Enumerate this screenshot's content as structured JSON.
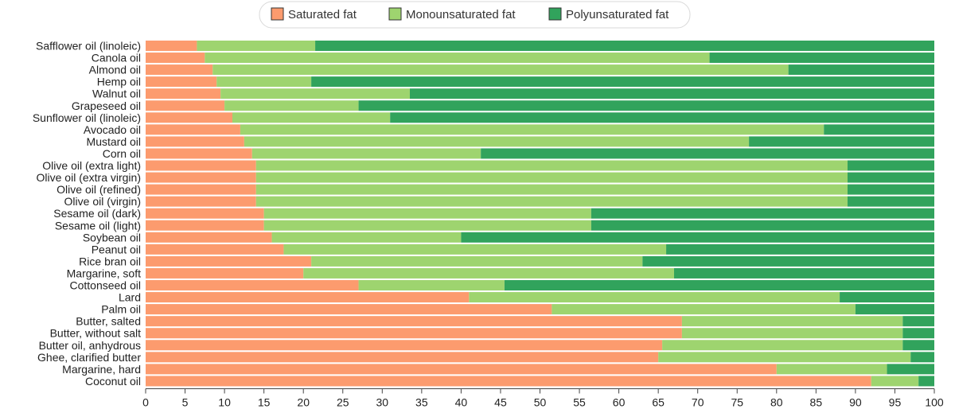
{
  "chart_data": {
    "type": "bar",
    "orientation": "horizontal",
    "stacked": true,
    "xlim": [
      0,
      100
    ],
    "x_ticks": [
      "0",
      "5",
      "10",
      "15",
      "20",
      "25",
      "30",
      "35",
      "40",
      "45",
      "50",
      "55",
      "60",
      "65",
      "70",
      "75",
      "80",
      "85",
      "90",
      "95",
      "100"
    ],
    "legend_placement": "top-center",
    "categories": [
      "Safflower oil (linoleic)",
      "Canola oil",
      "Almond oil",
      "Hemp oil",
      "Walnut oil",
      "Grapeseed oil",
      "Sunflower oil (linoleic)",
      "Avocado oil",
      "Mustard oil",
      "Corn oil",
      "Olive oil (extra light)",
      "Olive oil (extra virgin)",
      "Olive oil (refined)",
      "Olive oil (virgin)",
      "Sesame oil (dark)",
      "Sesame oil (light)",
      "Soybean oil",
      "Peanut oil",
      "Rice bran oil",
      "Margarine, soft",
      "Cottonseed oil",
      "Lard",
      "Palm oil",
      "Butter, salted",
      "Butter, without salt",
      "Butter oil, anhydrous",
      "Ghee, clarified butter",
      "Margarine, hard",
      "Coconut oil"
    ],
    "series": [
      {
        "name": "Saturated fat",
        "color": "#fc9b6e",
        "values": [
          6.5,
          7.5,
          8.5,
          9,
          9.5,
          10,
          11,
          12,
          12.5,
          13.5,
          14,
          14,
          14,
          14,
          15,
          15,
          16,
          17.5,
          21,
          20,
          27,
          41,
          51.5,
          68,
          68,
          65.5,
          65,
          80,
          92
        ]
      },
      {
        "name": "Monounsaturated fat",
        "color": "#9ed46f",
        "values": [
          15,
          64,
          73,
          12,
          24,
          17,
          20,
          74,
          64,
          29,
          75,
          75,
          75,
          75,
          41.5,
          41.5,
          24,
          48.5,
          42,
          47,
          18.5,
          47,
          38.5,
          28,
          28,
          30.5,
          32,
          14,
          6
        ]
      },
      {
        "name": "Polyunsaturated fat",
        "color": "#31a35c",
        "values": [
          78.5,
          28.5,
          18.5,
          79,
          66.5,
          73,
          69,
          14,
          23.5,
          57.5,
          11,
          11,
          11,
          11,
          43.5,
          43.5,
          60,
          34,
          37,
          33,
          54.5,
          12,
          10,
          4,
          4,
          4,
          3,
          6,
          2
        ]
      }
    ]
  }
}
